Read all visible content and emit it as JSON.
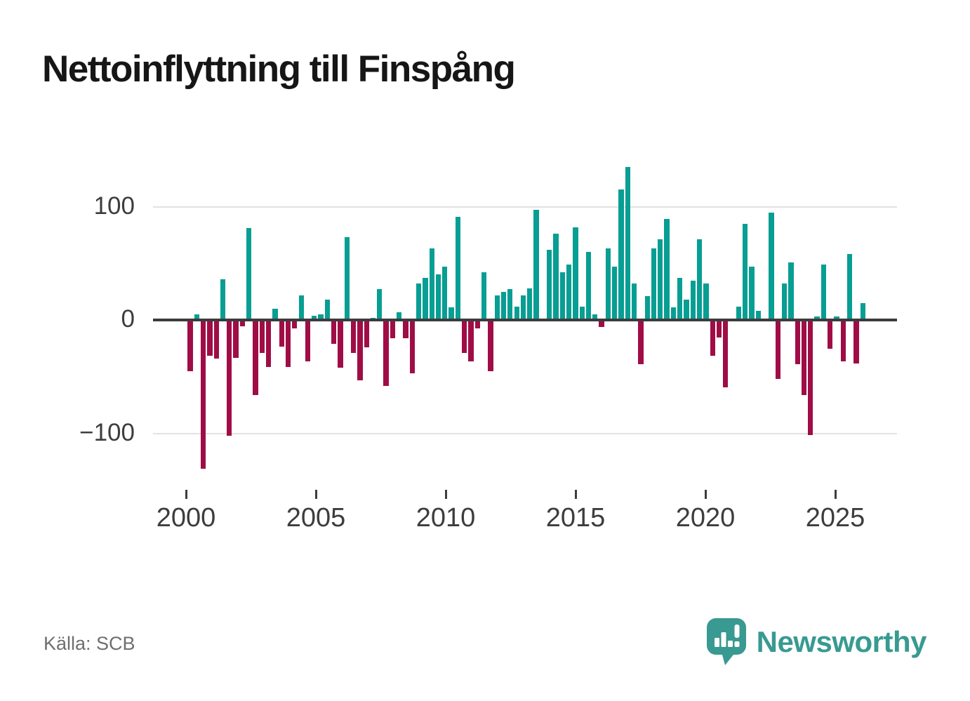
{
  "title": "Nettoinflyttning till Finspång",
  "source": "Källa: SCB",
  "branding": {
    "name": "Newsworthy",
    "icon": "speech-bubble-bar-chart-exclamation-icon"
  },
  "colors": {
    "positive_bar": "#079e93",
    "negative_bar": "#a00d46",
    "zero_line": "#3c3c3c",
    "gridline": "#e2e2e2",
    "axis_text": "#3d3d3d",
    "title_text": "#161616",
    "source_text": "#6f6f6f",
    "brand_teal": "#389a91",
    "background": "#ffffff"
  },
  "y_axis": {
    "ticks": [
      {
        "label": "100",
        "value": 100
      },
      {
        "label": "0",
        "value": 0
      },
      {
        "label": "−100",
        "value": -100
      }
    ]
  },
  "x_axis": {
    "ticks": [
      {
        "label": "2000",
        "year": 2000
      },
      {
        "label": "2005",
        "year": 2005
      },
      {
        "label": "2010",
        "year": 2010
      },
      {
        "label": "2015",
        "year": 2015
      },
      {
        "label": "2020",
        "year": 2020
      },
      {
        "label": "2025",
        "year": 2025
      }
    ]
  },
  "chart_data": {
    "type": "bar",
    "title": "Nettoinflyttning till Finspång",
    "xlabel": "",
    "ylabel": "",
    "frequency": "quarterly",
    "start_period": "2000-Q1",
    "end_period": "2025-Q4",
    "ylim": [
      -140,
      150
    ],
    "yticks": [
      -100,
      0,
      100
    ],
    "grid": "horizontal gridlines at 100 and -100, dark zero baseline",
    "legend_position": "none",
    "value_sign_colors": {
      "positive": "#079e93",
      "negative": "#a00d46"
    },
    "values": [
      -44,
      5,
      -130,
      -30,
      -33,
      36,
      -101,
      -32,
      -4,
      81,
      -65,
      -28,
      -40,
      10,
      -22,
      -40,
      -6,
      22,
      -35,
      4,
      5,
      18,
      -20,
      -41,
      73,
      -28,
      -52,
      -23,
      2,
      27,
      -57,
      -15,
      7,
      -15,
      -46,
      32,
      37,
      63,
      40,
      47,
      11,
      91,
      -28,
      -35,
      -6,
      42,
      -44,
      22,
      25,
      27,
      12,
      22,
      28,
      97,
      0,
      62,
      76,
      42,
      49,
      82,
      12,
      60,
      5,
      -5,
      63,
      47,
      115,
      135,
      32,
      -38,
      21,
      63,
      71,
      89,
      11,
      37,
      18,
      35,
      71,
      32,
      -30,
      -14,
      -58,
      0,
      12,
      85,
      47,
      8,
      0,
      95,
      -51,
      32,
      51,
      -38,
      -65,
      -100,
      3,
      49,
      -24,
      3,
      -35,
      58,
      -37,
      15
    ]
  }
}
